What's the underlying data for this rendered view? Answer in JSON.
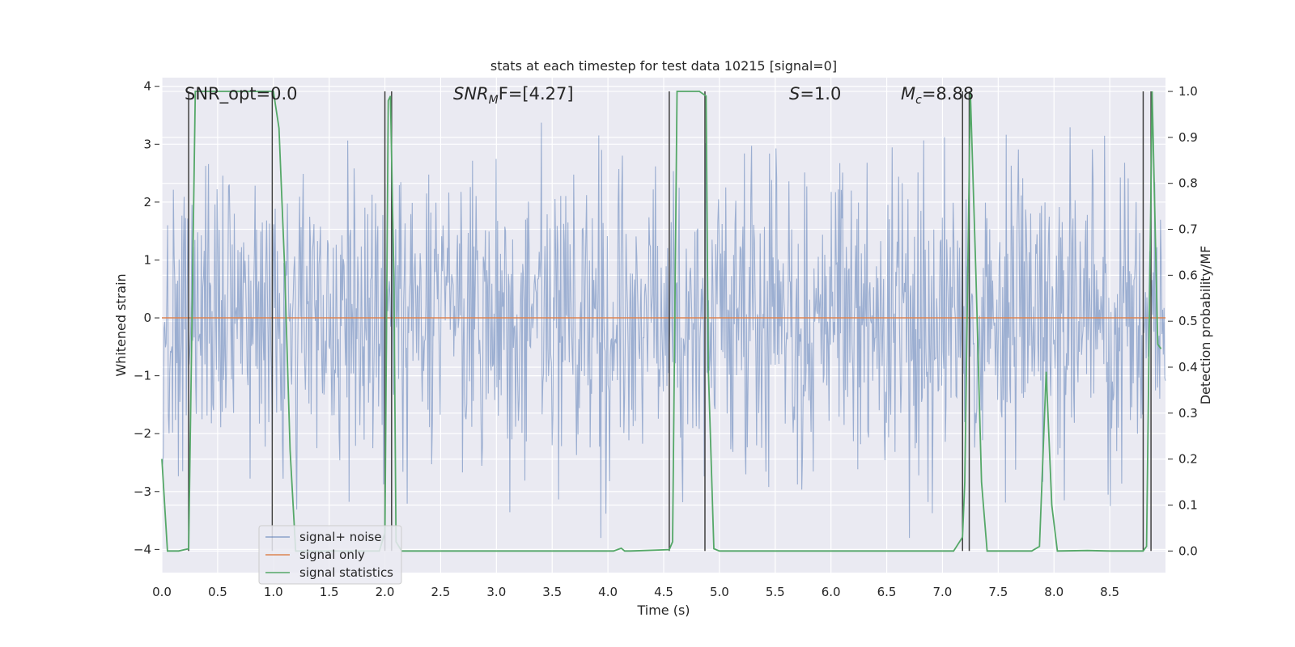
{
  "chart_data": {
    "type": "line",
    "title": "stats at each timestep for test data 10215 [signal=0]",
    "xlabel": "Time (s)",
    "ylabel": "Whitened strain",
    "ylabel_right": "Detection probability/MF",
    "xlim": [
      0,
      9.0
    ],
    "ylim": [
      -4.4,
      4.15
    ],
    "ylim_right": [
      -0.047,
      1.03
    ],
    "x_ticks": [
      "0.0",
      "0.5",
      "1.0",
      "1.5",
      "2.0",
      "2.5",
      "3.0",
      "3.5",
      "4.0",
      "4.5",
      "5.0",
      "5.5",
      "6.0",
      "6.5",
      "7.0",
      "7.5",
      "8.0",
      "8.5"
    ],
    "x_tick_values": [
      0,
      0.5,
      1,
      1.5,
      2,
      2.5,
      3,
      3.5,
      4,
      4.5,
      5,
      5.5,
      6,
      6.5,
      7,
      7.5,
      8,
      8.5
    ],
    "y_ticks": [
      "4",
      "3",
      "2",
      "1",
      "0",
      "−1",
      "−2",
      "−3",
      "−4"
    ],
    "y_tick_values": [
      4,
      3,
      2,
      1,
      0,
      -1,
      -2,
      -3,
      -4
    ],
    "y_right_ticks": [
      "1.0",
      "0.9",
      "0.8",
      "0.7",
      "0.6",
      "0.5",
      "0.4",
      "0.3",
      "0.2",
      "0.1",
      "0.0"
    ],
    "y_right_tick_values": [
      1.0,
      0.9,
      0.8,
      0.7,
      0.6,
      0.5,
      0.4,
      0.3,
      0.2,
      0.1,
      0.0
    ],
    "annotations": {
      "snr_opt": "SNR_opt=0.0",
      "snr_mf_main": "SNR",
      "snr_mf_sub": "M",
      "snr_mf_rest": "F=[4.27]",
      "s_main": "S",
      "s_rest": "=1.0",
      "mc_main": "M",
      "mc_sub": "c",
      "mc_rest": "=8.88"
    },
    "legend": [
      "signal+ noise",
      "signal only",
      "signal statistics"
    ],
    "legend_position": "lower-left",
    "colors": {
      "noise": "#4c72b0",
      "signal_only": "#dd8452",
      "statistics": "#55a868",
      "vlines": "#404040",
      "background": "#eaeaf2",
      "grid": "#ffffff"
    },
    "series": [
      {
        "name": "signal statistics",
        "axis": "right",
        "x": [
          0.0,
          0.05,
          0.15,
          0.24,
          0.3,
          0.35,
          1.0,
          1.05,
          1.1,
          1.15,
          1.2,
          1.25,
          1.95,
          2.0,
          2.03,
          2.05,
          2.08,
          2.1,
          2.15,
          2.2,
          4.05,
          4.12,
          4.15,
          4.2,
          4.55,
          4.58,
          4.62,
          4.82,
          4.88,
          4.9,
          4.95,
          5.0,
          7.1,
          7.18,
          7.2,
          7.25,
          7.3,
          7.35,
          7.4,
          7.8,
          7.87,
          7.93,
          7.98,
          8.03,
          8.3,
          8.5,
          8.8,
          8.83,
          8.88,
          8.93,
          8.96
        ],
        "y": [
          0.2,
          0.0,
          0.0,
          0.005,
          1.0,
          1.0,
          1.0,
          0.92,
          0.62,
          0.22,
          0.0,
          0.0,
          0.0,
          0.04,
          0.98,
          0.99,
          0.6,
          0.02,
          0.0,
          0.0,
          0.0,
          0.006,
          0.0,
          0.0,
          0.003,
          0.02,
          1.0,
          1.0,
          0.99,
          0.4,
          0.005,
          0.0,
          0.0,
          0.03,
          0.15,
          1.0,
          0.6,
          0.15,
          0.0,
          0.0,
          0.01,
          0.39,
          0.1,
          0.0,
          0.001,
          0.0,
          0.0,
          0.01,
          1.0,
          0.45,
          0.44
        ]
      },
      {
        "name": "signal only",
        "axis": "left",
        "x": [
          0.0,
          9.0
        ],
        "y": [
          0.0,
          0.0
        ]
      },
      {
        "name": "signal+ noise",
        "axis": "left",
        "description_values": "dense whitened noise, roughly Gaussian, |y| up to ~3.8",
        "n_points": 1400,
        "seed": 10215,
        "envelope_max": 3.8
      }
    ],
    "vlines_x": [
      0.24,
      0.99,
      2.0,
      2.06,
      4.55,
      4.87,
      7.18,
      7.24,
      8.8,
      8.87
    ]
  }
}
